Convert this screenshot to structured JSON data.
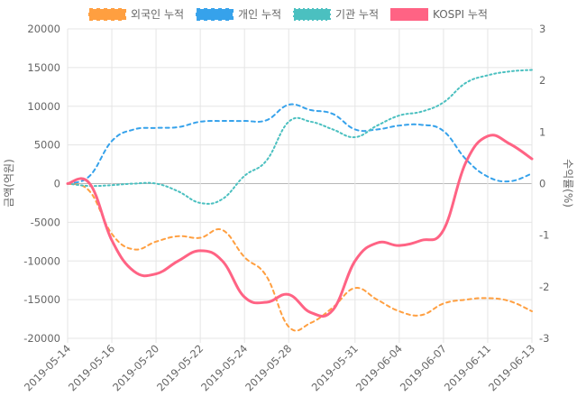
{
  "chart_data": {
    "type": "line",
    "x": [
      "2019-05-14",
      "2019-05-15",
      "2019-05-16",
      "2019-05-17",
      "2019-05-20",
      "2019-05-21",
      "2019-05-22",
      "2019-05-23",
      "2019-05-24",
      "2019-05-27",
      "2019-05-28",
      "2019-05-29",
      "2019-05-30",
      "2019-05-31",
      "2019-06-03",
      "2019-06-04",
      "2019-06-05",
      "2019-06-07",
      "2019-06-10",
      "2019-06-11",
      "2019-06-12",
      "2019-06-13"
    ],
    "x_tick_labels": [
      "2019-05-14",
      "2019-05-16",
      "2019-05-20",
      "2019-05-22",
      "2019-05-24",
      "2019-05-28",
      "2019-05-31",
      "2019-06-04",
      "2019-06-07",
      "2019-06-11",
      "2019-06-13"
    ],
    "y_left": {
      "label": "금액(억원)",
      "range": [
        -20000,
        20000
      ],
      "ticks": [
        20000,
        15000,
        10000,
        5000,
        0,
        -5000,
        -10000,
        -15000,
        -20000
      ]
    },
    "y_right": {
      "label": "수익률(%)",
      "range": [
        -3,
        3
      ],
      "ticks": [
        3,
        2,
        1,
        0,
        -1,
        -2,
        -3
      ]
    },
    "grid": true,
    "legend_position": "top",
    "series": [
      {
        "name": "외국인 누적",
        "axis": "left",
        "style": "dashed",
        "color": "#ff9f40",
        "values": [
          0,
          -1000,
          -6500,
          -8500,
          -7500,
          -6800,
          -7000,
          -6000,
          -9500,
          -12000,
          -18500,
          -18000,
          -16000,
          -13500,
          -15000,
          -16500,
          -17000,
          -15500,
          -15000,
          -14800,
          -15200,
          -16500
        ]
      },
      {
        "name": "개인 누적",
        "axis": "left",
        "style": "dashed",
        "color": "#36a2eb",
        "values": [
          0,
          1000,
          5500,
          7000,
          7200,
          7300,
          8000,
          8100,
          8100,
          8200,
          10200,
          9500,
          9000,
          7000,
          7000,
          7500,
          7600,
          6800,
          3200,
          900,
          300,
          1300
        ]
      },
      {
        "name": "기관 누적",
        "axis": "left",
        "style": "dotted",
        "color": "#4bc0c0",
        "values": [
          0,
          -300,
          -200,
          0,
          0,
          -1000,
          -2500,
          -2000,
          1000,
          3000,
          8000,
          8000,
          7000,
          6000,
          7500,
          8800,
          9300,
          10500,
          13000,
          14000,
          14500,
          14700
        ]
      },
      {
        "name": "KOSPI 누적",
        "axis": "right",
        "style": "solid",
        "color": "#ff6384",
        "values": [
          0,
          0,
          -1.1,
          -1.7,
          -1.75,
          -1.5,
          -1.3,
          -1.5,
          -2.2,
          -2.3,
          -2.15,
          -2.5,
          -2.45,
          -1.5,
          -1.15,
          -1.2,
          -1.1,
          -0.9,
          0.4,
          0.92,
          0.77,
          0.48
        ]
      }
    ]
  }
}
